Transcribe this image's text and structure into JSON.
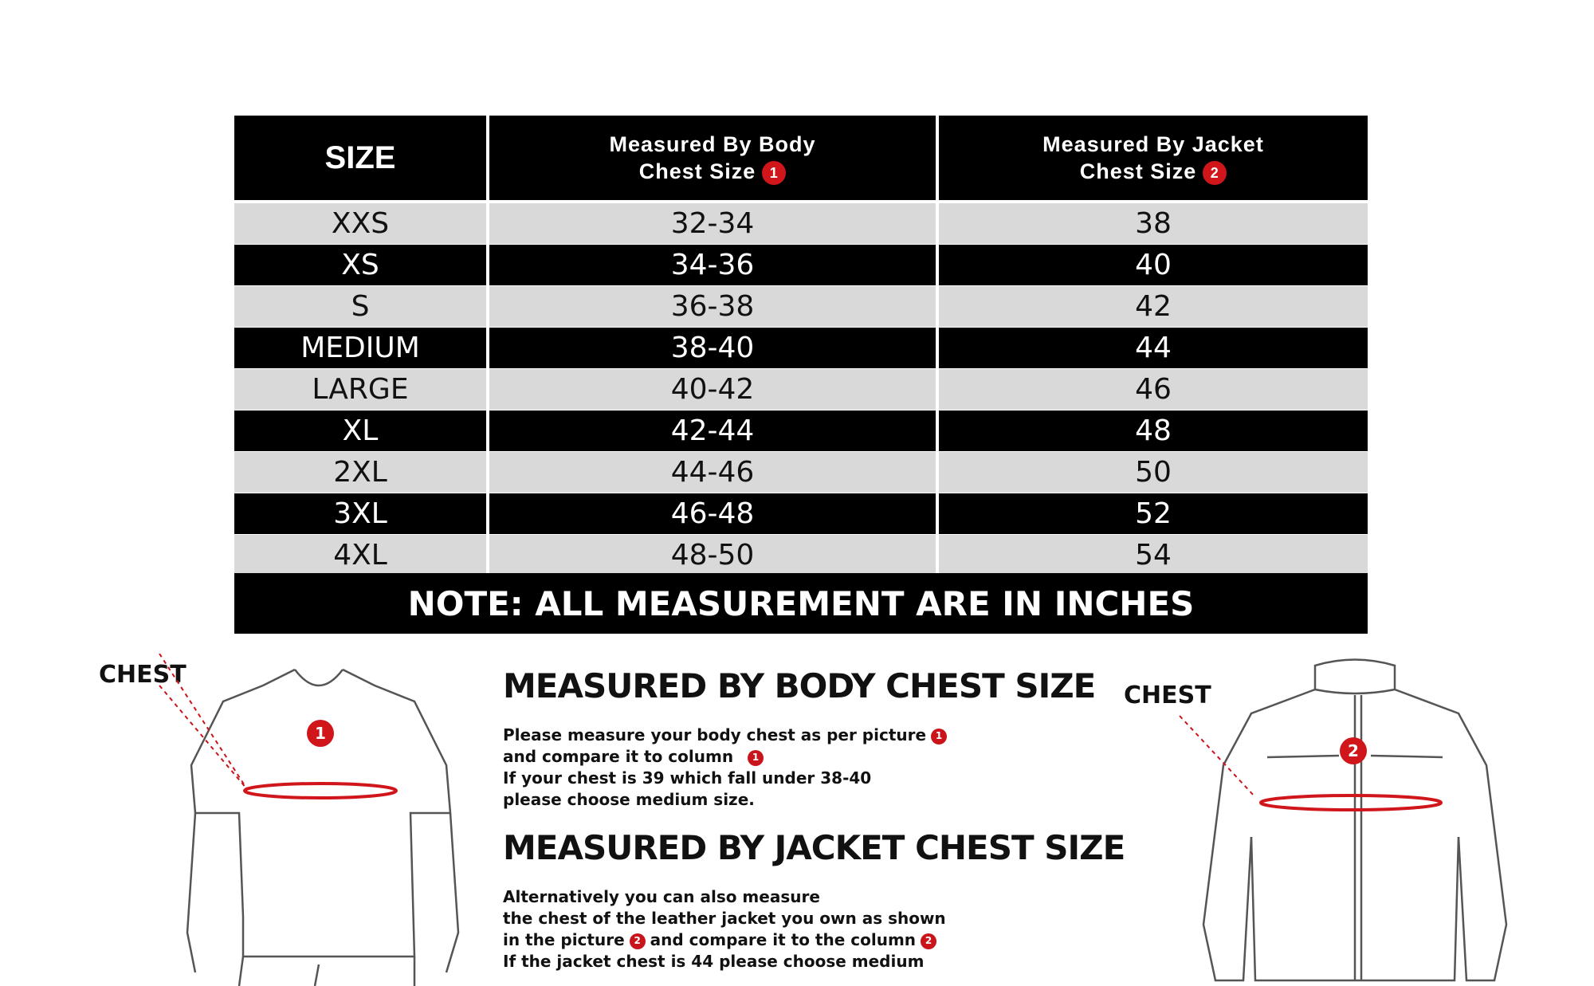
{
  "table": {
    "headers": {
      "size": "SIZE",
      "body_line1": "Measured By Body",
      "body_line2": "Chest Size",
      "body_badge": "1",
      "jacket_line1": "Measured By Jacket",
      "jacket_line2": "Chest Size",
      "jacket_badge": "2"
    },
    "rows": [
      {
        "size": "XXS",
        "body": "32-34",
        "jacket": "38"
      },
      {
        "size": "XS",
        "body": "34-36",
        "jacket": "40"
      },
      {
        "size": "S",
        "body": "36-38",
        "jacket": "42"
      },
      {
        "size": "MEDIUM",
        "body": "38-40",
        "jacket": "44"
      },
      {
        "size": "LARGE",
        "body": "40-42",
        "jacket": "46"
      },
      {
        "size": "XL",
        "body": "42-44",
        "jacket": "48"
      },
      {
        "size": "2XL",
        "body": "44-46",
        "jacket": "50"
      },
      {
        "size": "3XL",
        "body": "46-48",
        "jacket": "52"
      },
      {
        "size": "4XL",
        "body": "48-50",
        "jacket": "54"
      }
    ],
    "note": "NOTE: ALL MEASUREMENT ARE IN INCHES"
  },
  "body_section": {
    "title": "MEASURED BY BODY CHEST SIZE",
    "line1": "Please measure your body chest as per picture",
    "line2": "and compare it to column",
    "line3": "If your chest is 39 which fall under 38-40",
    "line4": "please choose medium size.",
    "badge": "1"
  },
  "jacket_section": {
    "title": "MEASURED BY JACKET CHEST SIZE",
    "line1": "Alternatively you can also measure",
    "line2": "the chest of the leather jacket you own as shown",
    "line3a": "in the picture",
    "line3b": "and compare it to the column",
    "line4": "If the jacket chest is 44 please choose medium",
    "badge": "2"
  },
  "figures": {
    "left_label": "CHEST",
    "right_label": "CHEST",
    "left_badge": "1",
    "right_badge": "2"
  },
  "colors": {
    "accent_red": "#d0151b",
    "row_light": "#d9d9d9",
    "row_dark": "#000000"
  }
}
